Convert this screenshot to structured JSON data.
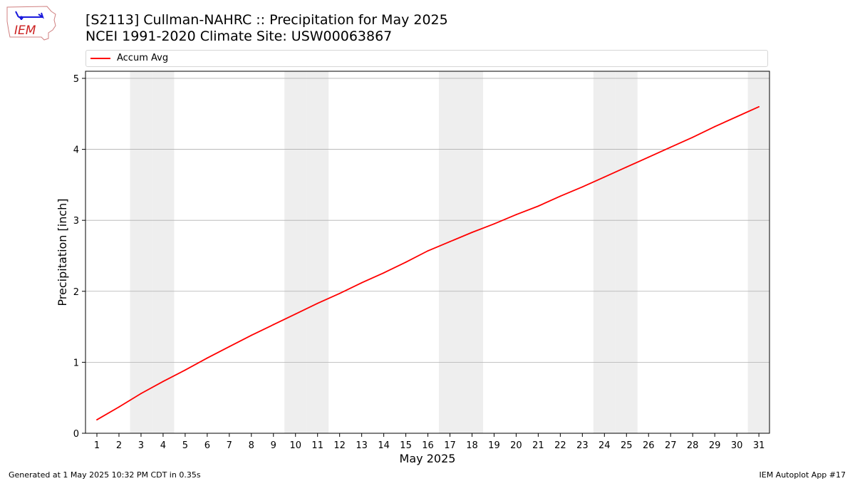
{
  "header": {
    "title_line1": "[S2113] Cullman-NAHRC :: Precipitation for May 2025",
    "title_line2": "NCEI 1991-2020 Climate Site: USW00063867"
  },
  "logo": {
    "text": "IEM"
  },
  "footer": {
    "left": "Generated at 1 May 2025 10:32 PM CDT in 0.35s",
    "right": "IEM Autoplot App #17"
  },
  "colors": {
    "line": "#ff0000",
    "weekend_band": "#eeeeee",
    "grid": "#b0b0b0"
  },
  "chart_data": {
    "type": "line",
    "xlabel": "May 2025",
    "ylabel": "Precipitation [inch]",
    "ylim": [
      0,
      5.1
    ],
    "yticks": [
      0,
      1,
      2,
      3,
      4,
      5
    ],
    "xticks": [
      1,
      2,
      3,
      4,
      5,
      6,
      7,
      8,
      9,
      10,
      11,
      12,
      13,
      14,
      15,
      16,
      17,
      18,
      19,
      20,
      21,
      22,
      23,
      24,
      25,
      26,
      27,
      28,
      29,
      30,
      31
    ],
    "grid": "horizontal",
    "legend": "top",
    "weekend_days": [
      3,
      4,
      10,
      11,
      17,
      18,
      24,
      25,
      31
    ],
    "series": [
      {
        "name": "Accum Avg",
        "x": [
          1,
          2,
          3,
          4,
          5,
          6,
          7,
          8,
          9,
          10,
          11,
          12,
          13,
          14,
          15,
          16,
          17,
          18,
          19,
          20,
          21,
          22,
          23,
          24,
          25,
          26,
          27,
          28,
          29,
          30,
          31
        ],
        "values": [
          0.19,
          0.37,
          0.56,
          0.73,
          0.89,
          1.06,
          1.22,
          1.38,
          1.53,
          1.68,
          1.83,
          1.97,
          2.12,
          2.26,
          2.41,
          2.57,
          2.7,
          2.83,
          2.95,
          3.08,
          3.2,
          3.34,
          3.47,
          3.61,
          3.75,
          3.89,
          4.03,
          4.17,
          4.32,
          4.46,
          4.6
        ]
      }
    ]
  }
}
